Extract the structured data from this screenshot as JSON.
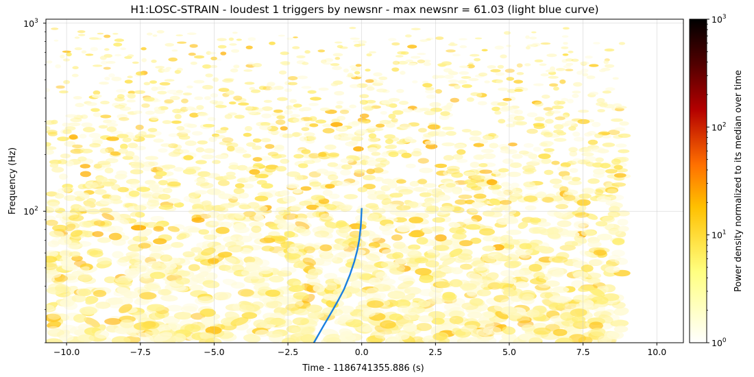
{
  "chart_data": {
    "type": "heatmap",
    "title": "H1:LOSC-STRAIN - loudest 1 triggers by newsnr - max newsnr = 61.03 (light blue curve)",
    "xlabel": "Time - 1186741355.886 (s)",
    "ylabel": "Frequency (Hz)",
    "xlim": [
      -10.7,
      10.9
    ],
    "ylim": [
      20,
      1050
    ],
    "yscale": "log",
    "data_extent": {
      "x": [
        -10.7,
        8.9
      ],
      "y": [
        20,
        950
      ]
    },
    "x_ticks": [
      -10.0,
      -7.5,
      -5.0,
      -2.5,
      0.0,
      2.5,
      5.0,
      7.5,
      10.0
    ],
    "x_tick_labels": [
      "−10.0",
      "−7.5",
      "−5.0",
      "−2.5",
      "0.0",
      "2.5",
      "5.0",
      "7.5",
      "10.0"
    ],
    "y_ticks": [
      100,
      1000
    ],
    "y_tick_labels": [
      [
        "10",
        "2"
      ],
      [
        "10",
        "3"
      ]
    ],
    "grid": true,
    "trigger_curve": {
      "color": "#1a7fe0",
      "x": [
        -1.62,
        -1.3,
        -1.0,
        -0.8,
        -0.6,
        -0.4,
        -0.25,
        -0.15,
        -0.08,
        -0.03,
        0.0
      ],
      "y": [
        20,
        24.5,
        29.5,
        33.5,
        38.5,
        46,
        54,
        62,
        71,
        84,
        104
      ]
    },
    "colorbar": {
      "label": "Power density normalized to its median over time",
      "scale": "log",
      "range": [
        1,
        1000
      ],
      "tick_labels": [
        [
          "10",
          "0"
        ],
        [
          "10",
          "1"
        ],
        [
          "10",
          "2"
        ],
        [
          "10",
          "3"
        ]
      ],
      "colors": [
        "#ffffff",
        "#ffff80",
        "#ffc000",
        "#ff7000",
        "#b40000",
        "#520000",
        "#000000"
      ]
    }
  }
}
